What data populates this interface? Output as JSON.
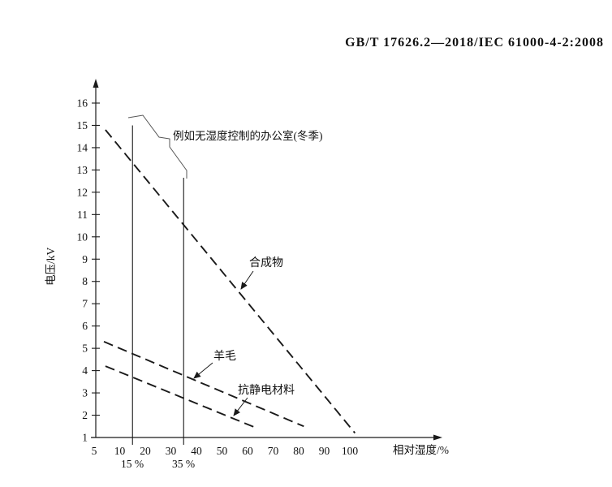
{
  "header": {
    "text": "GB/T 17626.2—2018/IEC 61000-4-2:2008"
  },
  "chart_data": {
    "type": "line",
    "title": "",
    "xlabel": "相对湿度/%",
    "ylabel": "电压/kV",
    "x_ticks": [
      5,
      10,
      20,
      30,
      40,
      50,
      60,
      70,
      80,
      90,
      100
    ],
    "x_axis_note": "tick values evenly spaced (non-linear scale)",
    "y_ticks": [
      1,
      2,
      3,
      4,
      5,
      6,
      7,
      8,
      9,
      10,
      11,
      12,
      13,
      14,
      15,
      16
    ],
    "ylim": [
      1,
      16
    ],
    "grid": false,
    "legend_position": "inline-labels",
    "line_style": "dashed",
    "line_color": "#1a1a1a",
    "series": [
      {
        "name": "合成物",
        "points": [
          [
            7.2,
            14.8
          ],
          [
            102,
            1.2
          ]
        ]
      },
      {
        "name": "羊毛",
        "points": [
          [
            6.9,
            5.3
          ],
          [
            82,
            1.5
          ]
        ]
      },
      {
        "name": "抗静电材料",
        "points": [
          [
            7.2,
            4.2
          ],
          [
            64,
            1.4
          ]
        ]
      }
    ],
    "reference_lines": [
      {
        "x": 15,
        "label": "15 %",
        "top_kv": 15
      },
      {
        "x": 35,
        "label": "35 %",
        "top_kv": 12.65
      }
    ],
    "annotation": {
      "text": "例如无湿度控制的办公室(冬季)"
    }
  }
}
